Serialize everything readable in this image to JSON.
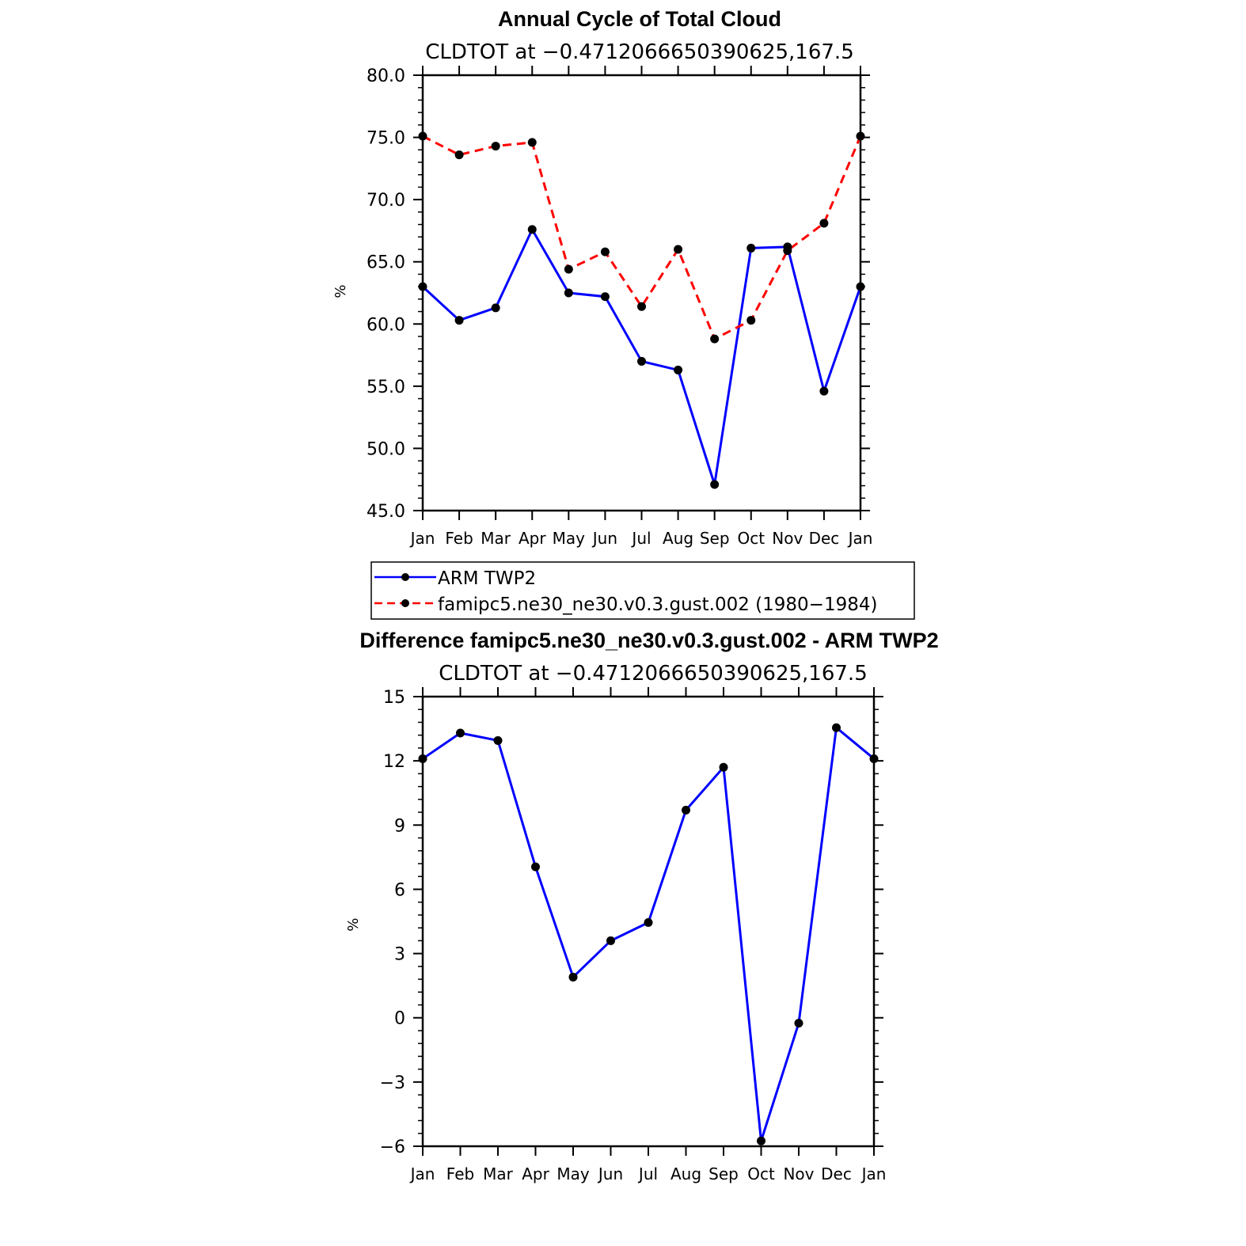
{
  "chart_data": [
    {
      "type": "line",
      "title": "Annual Cycle of Total Cloud",
      "subtitle": "CLDTOT at −0.4712066650390625,167.5",
      "ylabel": "%",
      "xlabel": "",
      "ylim": [
        45.0,
        80.0
      ],
      "yticks": [
        "45.0",
        "50.0",
        "55.0",
        "60.0",
        "65.0",
        "70.0",
        "75.0",
        "80.0"
      ],
      "categories": [
        "Jan",
        "Feb",
        "Mar",
        "Apr",
        "May",
        "Jun",
        "Jul",
        "Aug",
        "Sep",
        "Oct",
        "Nov",
        "Dec",
        "Jan"
      ],
      "series": [
        {
          "name": "ARM TWP2",
          "color": "#0000ff",
          "dash": "solid",
          "values": [
            63.0,
            60.3,
            61.3,
            67.6,
            62.5,
            62.2,
            57.0,
            56.3,
            47.1,
            66.1,
            66.2,
            54.6,
            63.0
          ]
        },
        {
          "name": "famipc5.ne30_ne30.v0.3.gust.002 (1980−1984)",
          "color": "#ff0000",
          "dash": "dashed",
          "values": [
            75.1,
            73.6,
            74.3,
            74.6,
            64.4,
            65.8,
            61.4,
            66.0,
            58.8,
            60.3,
            65.9,
            68.1,
            75.1
          ]
        }
      ]
    },
    {
      "type": "line",
      "title": "Difference famipc5.ne30_ne30.v0.3.gust.002 - ARM TWP2",
      "subtitle": "CLDTOT at −0.4712066650390625,167.5",
      "ylabel": "%",
      "xlabel": "",
      "ylim": [
        -6,
        15
      ],
      "yticks": [
        "−6",
        "−3",
        "0",
        "3",
        "6",
        "9",
        "12",
        "15"
      ],
      "categories": [
        "Jan",
        "Feb",
        "Mar",
        "Apr",
        "May",
        "Jun",
        "Jul",
        "Aug",
        "Sep",
        "Oct",
        "Nov",
        "Dec",
        "Jan"
      ],
      "series": [
        {
          "name": "Difference",
          "color": "#0000ff",
          "dash": "solid",
          "values": [
            12.1,
            13.3,
            12.95,
            7.05,
            1.9,
            3.6,
            4.45,
            9.7,
            11.7,
            -5.75,
            -0.25,
            13.55,
            12.1
          ]
        }
      ]
    }
  ]
}
